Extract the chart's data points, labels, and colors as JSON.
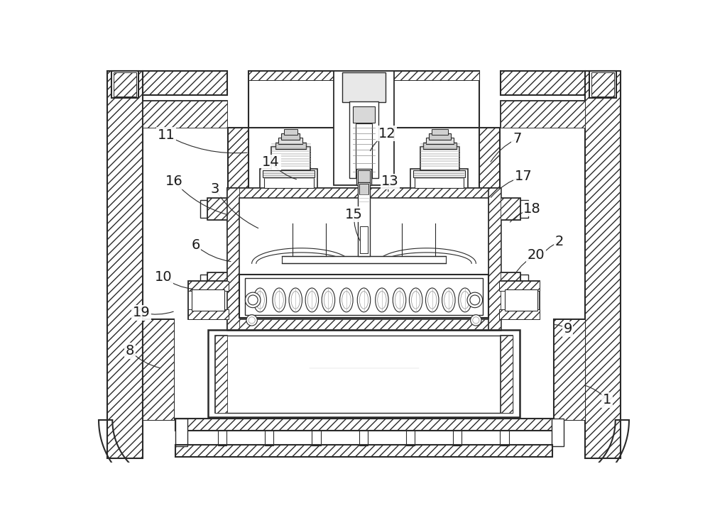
{
  "bg_color": "#ffffff",
  "line_color": "#2a2a2a",
  "label_color": "#1a1a1a",
  "figure_width": 10.0,
  "figure_height": 7.33,
  "labels": [
    [
      "1",
      945,
      618,
      900,
      590
    ],
    [
      "2",
      858,
      328,
      820,
      360
    ],
    [
      "3",
      228,
      232,
      310,
      305
    ],
    [
      "6",
      192,
      335,
      260,
      365
    ],
    [
      "7",
      780,
      140,
      730,
      185
    ],
    [
      "8",
      72,
      528,
      130,
      560
    ],
    [
      "9",
      873,
      488,
      845,
      480
    ],
    [
      "10",
      133,
      393,
      190,
      415
    ],
    [
      "11",
      138,
      133,
      290,
      165
    ],
    [
      "12",
      542,
      130,
      510,
      165
    ],
    [
      "13",
      548,
      218,
      545,
      240
    ],
    [
      "14",
      330,
      183,
      380,
      215
    ],
    [
      "15",
      482,
      278,
      495,
      330
    ],
    [
      "16",
      153,
      218,
      255,
      280
    ],
    [
      "17",
      792,
      208,
      730,
      250
    ],
    [
      "18",
      808,
      268,
      765,
      295
    ],
    [
      "19",
      93,
      458,
      155,
      455
    ],
    [
      "20",
      815,
      353,
      775,
      390
    ]
  ]
}
